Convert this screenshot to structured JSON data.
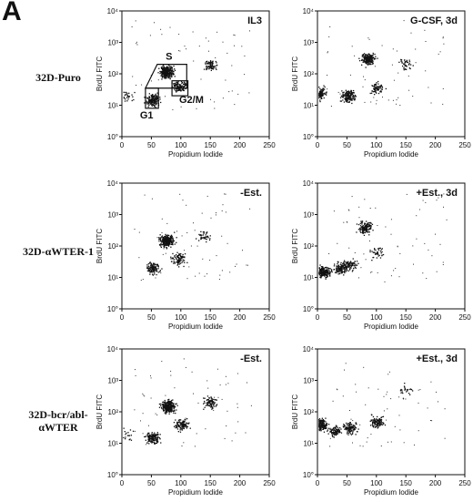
{
  "figure": {
    "panel_letter": "A",
    "row_labels": [
      [
        "32D-Puro"
      ],
      [
        "32D-αWTER-1"
      ],
      [
        "32D-bcr/abl-",
        "αWTER"
      ]
    ]
  },
  "chart_data": [
    {
      "type": "scatter",
      "panel_label": "IL3",
      "xlabel": "Propidium Iodide",
      "ylabel": "BrdU FITC",
      "xlim": [
        0,
        250
      ],
      "ylim": [
        1,
        10000
      ],
      "yscale": "log",
      "xticks": [
        "0",
        "50",
        "100",
        "150",
        "200",
        "250"
      ],
      "yticks": [
        "10°",
        "10¹",
        "10²",
        "10³",
        "10⁴"
      ],
      "gates": [
        "S",
        "G1",
        "G2/M"
      ],
      "clusters": [
        {
          "x": 52,
          "y": 15,
          "n": 160
        },
        {
          "x": 75,
          "y": 120,
          "n": 280
        },
        {
          "x": 98,
          "y": 40,
          "n": 120
        },
        {
          "x": 150,
          "y": 200,
          "n": 70
        },
        {
          "x": 10,
          "y": 20,
          "n": 25
        }
      ]
    },
    {
      "type": "scatter",
      "panel_label": "G-CSF,  3d",
      "xlabel": "Propidium Iodide",
      "ylabel": "BrdU FITC",
      "xlim": [
        0,
        250
      ],
      "ylim": [
        1,
        10000
      ],
      "yscale": "log",
      "xticks": [
        "0",
        "50",
        "100",
        "150",
        "200",
        "250"
      ],
      "yticks": [
        "10°",
        "10¹",
        "10²",
        "10³",
        "10⁴"
      ],
      "clusters": [
        {
          "x": 3,
          "y": 25,
          "n": 140
        },
        {
          "x": 52,
          "y": 20,
          "n": 160
        },
        {
          "x": 85,
          "y": 300,
          "n": 200
        },
        {
          "x": 100,
          "y": 35,
          "n": 70
        },
        {
          "x": 150,
          "y": 200,
          "n": 40
        }
      ]
    },
    {
      "type": "scatter",
      "panel_label": "-Est.",
      "xlabel": "Propidium Iodide",
      "ylabel": "BrdU FITC",
      "xlim": [
        0,
        250
      ],
      "ylim": [
        1,
        10000
      ],
      "yscale": "log",
      "xticks": [
        "0",
        "50",
        "100",
        "150",
        "200",
        "250"
      ],
      "yticks": [
        "10°",
        "10¹",
        "10²",
        "10³",
        "10⁴"
      ],
      "clusters": [
        {
          "x": 52,
          "y": 20,
          "n": 110
        },
        {
          "x": 75,
          "y": 150,
          "n": 260
        },
        {
          "x": 95,
          "y": 40,
          "n": 90
        },
        {
          "x": 140,
          "y": 200,
          "n": 40
        }
      ]
    },
    {
      "type": "scatter",
      "panel_label": "+Est.,  3d",
      "xlabel": "Propidium Iodide",
      "ylabel": "BrdU FITC",
      "xlim": [
        0,
        250
      ],
      "ylim": [
        1,
        10000
      ],
      "yscale": "log",
      "xticks": [
        "0",
        "50",
        "100",
        "150",
        "200",
        "250"
      ],
      "yticks": [
        "10°",
        "10¹",
        "10²",
        "10³",
        "10⁴"
      ],
      "clusters": [
        {
          "x": 10,
          "y": 15,
          "n": 200
        },
        {
          "x": 40,
          "y": 20,
          "n": 130
        },
        {
          "x": 55,
          "y": 25,
          "n": 80
        },
        {
          "x": 80,
          "y": 400,
          "n": 150
        },
        {
          "x": 100,
          "y": 60,
          "n": 40
        }
      ]
    },
    {
      "type": "scatter",
      "panel_label": "-Est.",
      "xlabel": "Propidium Iodide",
      "ylabel": "BrdU FITC",
      "xlim": [
        0,
        250
      ],
      "ylim": [
        1,
        10000
      ],
      "yscale": "log",
      "xticks": [
        "0",
        "50",
        "100",
        "150",
        "200",
        "250"
      ],
      "yticks": [
        "10°",
        "10¹",
        "10²",
        "10³",
        "10⁴"
      ],
      "clusters": [
        {
          "x": 52,
          "y": 15,
          "n": 140
        },
        {
          "x": 78,
          "y": 150,
          "n": 280
        },
        {
          "x": 100,
          "y": 40,
          "n": 110
        },
        {
          "x": 150,
          "y": 200,
          "n": 80
        },
        {
          "x": 5,
          "y": 20,
          "n": 25
        }
      ]
    },
    {
      "type": "scatter",
      "panel_label": "+Est.,  3d",
      "xlabel": "Propidium Iodide",
      "ylabel": "BrdU FITC",
      "xlim": [
        0,
        250
      ],
      "ylim": [
        1,
        10000
      ],
      "yscale": "log",
      "xticks": [
        "0",
        "50",
        "100",
        "150",
        "200",
        "250"
      ],
      "yticks": [
        "10°",
        "10¹",
        "10²",
        "10³",
        "10⁴"
      ],
      "clusters": [
        {
          "x": 5,
          "y": 40,
          "n": 200
        },
        {
          "x": 30,
          "y": 25,
          "n": 90
        },
        {
          "x": 55,
          "y": 30,
          "n": 110
        },
        {
          "x": 100,
          "y": 50,
          "n": 110
        },
        {
          "x": 150,
          "y": 500,
          "n": 25
        }
      ]
    }
  ]
}
